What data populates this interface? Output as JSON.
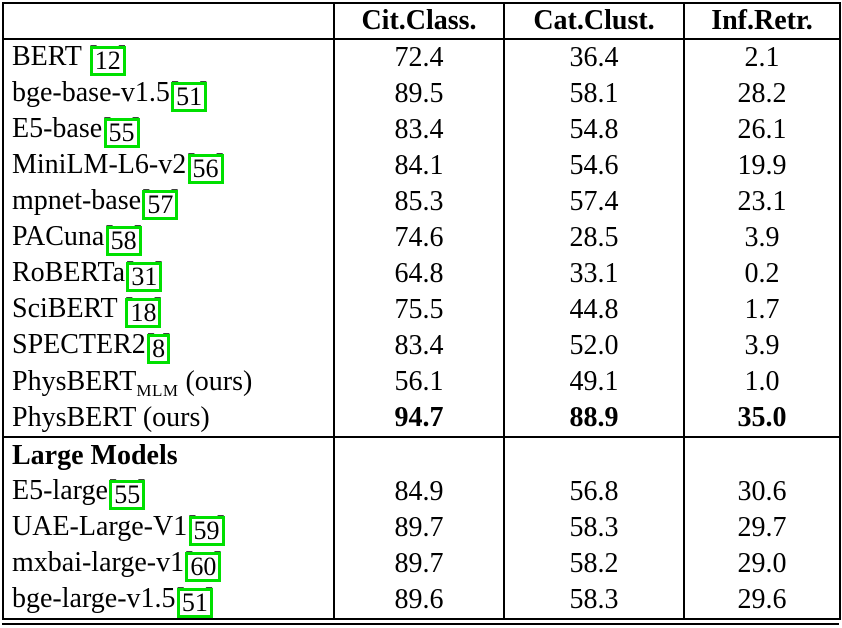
{
  "page": {
    "background": "#ffffff"
  },
  "table": {
    "column_headers": [
      "",
      "Cit.Class.",
      "Cat.Clust.",
      "Inf.Retr."
    ],
    "citation_open": "[",
    "citation_close": "]",
    "link_box_color": "#00e000",
    "rows": [
      {
        "name": "BERT ",
        "cite": "12",
        "values": [
          "72.4",
          "36.4",
          "2.1"
        ]
      },
      {
        "name": "bge-base-v1.5",
        "cite": "51",
        "values": [
          "89.5",
          "58.1",
          "28.2"
        ]
      },
      {
        "name": "E5-base",
        "cite": "55",
        "values": [
          "83.4",
          "54.8",
          "26.1"
        ]
      },
      {
        "name": "MiniLM-L6-v2",
        "cite": "56",
        "values": [
          "84.1",
          "54.6",
          "19.9"
        ]
      },
      {
        "name": "mpnet-base",
        "cite": "57",
        "values": [
          "85.3",
          "57.4",
          "23.1"
        ]
      },
      {
        "name": "PACuna",
        "cite": "58",
        "values": [
          "74.6",
          "28.5",
          "3.9"
        ]
      },
      {
        "name": "RoBERTa",
        "cite": "31",
        "values": [
          "64.8",
          "33.1",
          "0.2"
        ]
      },
      {
        "name": "SciBERT ",
        "cite": "18",
        "values": [
          "75.5",
          "44.8",
          "1.7"
        ]
      },
      {
        "name": "SPECTER2",
        "cite": "8",
        "values": [
          "83.4",
          "52.0",
          "3.9"
        ]
      },
      {
        "name": "PhysBERT",
        "subscript": "MLM",
        "suffix": " (ours)",
        "values": [
          "56.1",
          "49.1",
          "1.0"
        ]
      },
      {
        "name": "PhysBERT",
        "suffix": " (ours)",
        "values": [
          "94.7",
          "88.9",
          "35.0"
        ],
        "bold_values": true
      },
      {
        "section_header": "Large Models"
      },
      {
        "name": "E5-large",
        "cite": "55",
        "values": [
          "84.9",
          "56.8",
          "30.6"
        ]
      },
      {
        "name": "UAE-Large-V1",
        "cite": "59",
        "values": [
          "89.7",
          "58.3",
          "29.7"
        ]
      },
      {
        "name": "mxbai-large-v1",
        "cite": "60",
        "values": [
          "89.7",
          "58.2",
          "29.0"
        ]
      },
      {
        "name": "bge-large-v1.5",
        "cite": "51",
        "values": [
          "89.6",
          "58.3",
          "29.6"
        ]
      }
    ]
  }
}
